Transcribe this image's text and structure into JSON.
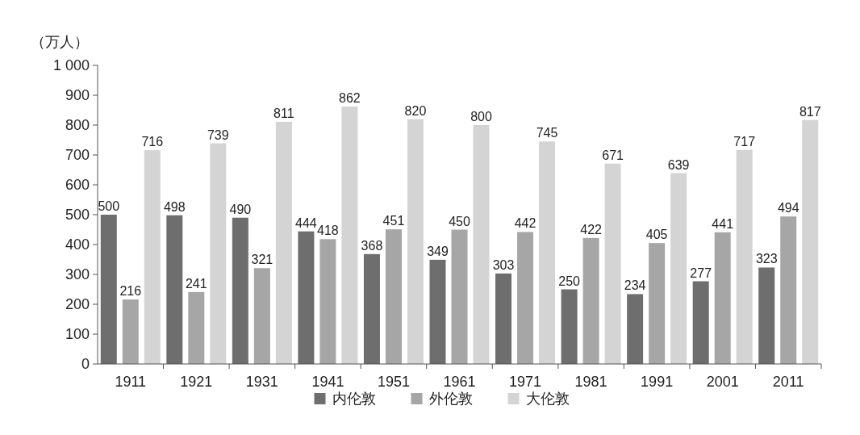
{
  "chart_data": {
    "type": "bar",
    "ylabel": "（万人）",
    "categories": [
      "1911",
      "1921",
      "1931",
      "1941",
      "1951",
      "1961",
      "1971",
      "1981",
      "1991",
      "2001",
      "2011"
    ],
    "series": [
      {
        "name": "内伦敦",
        "color": "#6e6e6e",
        "values": [
          500,
          498,
          490,
          444,
          368,
          349,
          303,
          250,
          234,
          277,
          323
        ]
      },
      {
        "name": "外伦敦",
        "color": "#a6a6a6",
        "values": [
          216,
          241,
          321,
          418,
          451,
          450,
          442,
          422,
          405,
          441,
          494
        ]
      },
      {
        "name": "大伦敦",
        "color": "#d4d4d4",
        "values": [
          716,
          739,
          811,
          862,
          820,
          800,
          745,
          671,
          639,
          717,
          817
        ]
      }
    ],
    "ylim": [
      0,
      1000
    ],
    "yticks": [
      0,
      100,
      200,
      300,
      400,
      500,
      600,
      700,
      800,
      900,
      {
        "value": 1000,
        "label": "1 000"
      }
    ],
    "data_labels": true,
    "legend": "bottom",
    "grid": false
  }
}
